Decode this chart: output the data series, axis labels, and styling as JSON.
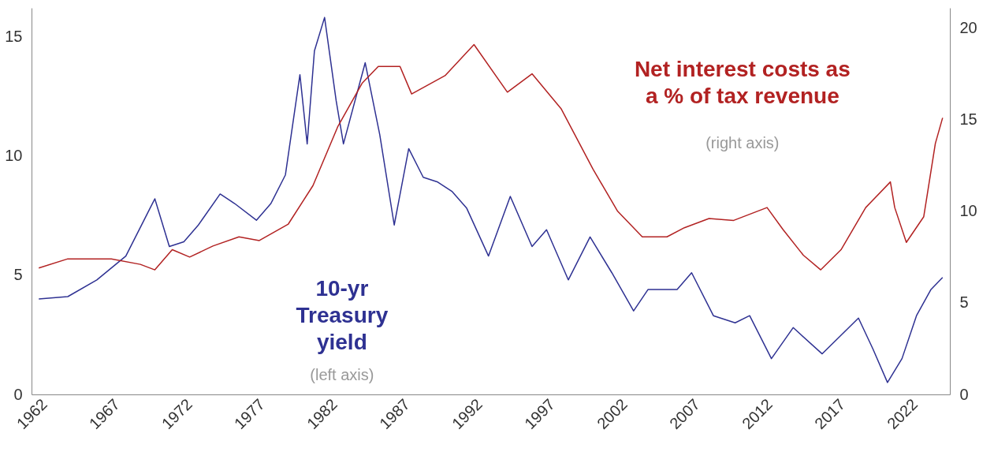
{
  "chart_data": {
    "type": "line",
    "xlim": [
      1961.5,
      2024.8
    ],
    "xticks": [
      1962,
      1967,
      1972,
      1977,
      1982,
      1987,
      1992,
      1997,
      2002,
      2007,
      2012,
      2017,
      2022
    ],
    "ylim": [
      0,
      16.2
    ],
    "yticks": [
      0,
      5,
      10,
      15
    ],
    "y2lim": [
      0,
      21.1
    ],
    "y2ticks": [
      0,
      5,
      10,
      15,
      20
    ],
    "grid": false,
    "marker": "none",
    "line_style": "solid",
    "annotations": [
      "Net interest costs as\na % of tax revenue",
      "(right axis)",
      "10-yr\nTreasury\nyield",
      "(left axis)"
    ],
    "series": [
      {
        "color": "#2e3192",
        "x": [
          1962,
          1964,
          1966,
          1968,
          1969.5,
          1970,
          1971,
          1972,
          1973,
          1974.5,
          1975.5,
          1977,
          1978,
          1979,
          1980,
          1980.5,
          1981,
          1981.7,
          1982.5,
          1983,
          1984.5,
          1985.5,
          1986.5,
          1987.5,
          1988.5,
          1989.5,
          1990.5,
          1991.5,
          1993,
          1994.5,
          1996,
          1997,
          1998.5,
          2000,
          2001.5,
          2003,
          2004,
          2006,
          2007,
          2008.5,
          2010,
          2011,
          2012.5,
          2014,
          2016,
          2018.5,
          2019.5,
          2020.5,
          2021.5,
          2022.5,
          2023.5,
          2024.3
        ],
        "values": [
          4.0,
          4.1,
          4.8,
          5.8,
          7.6,
          8.2,
          6.2,
          6.4,
          7.1,
          8.4,
          8.0,
          7.3,
          8.0,
          9.2,
          13.4,
          10.5,
          14.4,
          15.8,
          12.3,
          10.5,
          13.9,
          10.9,
          7.1,
          10.3,
          9.1,
          8.9,
          8.5,
          7.8,
          5.8,
          8.3,
          6.2,
          6.9,
          4.8,
          6.6,
          5.1,
          3.5,
          4.4,
          4.4,
          5.1,
          3.3,
          3.0,
          3.3,
          1.5,
          2.8,
          1.7,
          3.2,
          1.9,
          0.5,
          1.5,
          3.3,
          4.4,
          4.9
        ]
      },
      {
        "color": "#b22222",
        "axis": "y2",
        "x": [
          1962,
          1964,
          1967,
          1969,
          1970,
          1971.2,
          1972.4,
          1974,
          1975.8,
          1977.2,
          1979.2,
          1980.9,
          1982.6,
          1984.3,
          1985.4,
          1986.9,
          1987.7,
          1990,
          1992,
          1994.3,
          1996,
          1998,
          2000.2,
          2001.9,
          2003.6,
          2005.3,
          2006.5,
          2008.2,
          2009.9,
          2012.2,
          2013.3,
          2014.7,
          2015.9,
          2017.3,
          2019,
          2020.7,
          2021,
          2021.8,
          2023,
          2023.8,
          2024.3
        ],
        "values": [
          6.9,
          7.4,
          7.4,
          7.1,
          6.8,
          7.9,
          7.5,
          8.1,
          8.6,
          8.4,
          9.3,
          11.4,
          14.6,
          17.0,
          17.9,
          17.9,
          16.4,
          17.4,
          19.1,
          16.5,
          17.5,
          15.6,
          12.3,
          10.0,
          8.6,
          8.6,
          9.1,
          9.6,
          9.5,
          10.2,
          9.0,
          7.6,
          6.8,
          7.9,
          10.2,
          11.6,
          10.2,
          8.3,
          9.7,
          13.7,
          15.1
        ]
      }
    ]
  }
}
